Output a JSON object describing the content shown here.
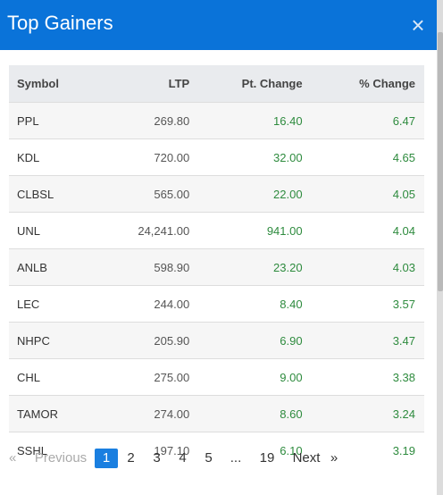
{
  "modal": {
    "title": "Top Gainers",
    "close_glyph": "×"
  },
  "table": {
    "headers": {
      "symbol": "Symbol",
      "ltp": "LTP",
      "pt_change": "Pt. Change",
      "pct_change": "% Change"
    },
    "rows": [
      {
        "symbol": "PPL",
        "ltp": "269.80",
        "pt_change": "16.40",
        "pct_change": "6.47"
      },
      {
        "symbol": "KDL",
        "ltp": "720.00",
        "pt_change": "32.00",
        "pct_change": "4.65"
      },
      {
        "symbol": "CLBSL",
        "ltp": "565.00",
        "pt_change": "22.00",
        "pct_change": "4.05"
      },
      {
        "symbol": "UNL",
        "ltp": "24,241.00",
        "pt_change": "941.00",
        "pct_change": "4.04"
      },
      {
        "symbol": "ANLB",
        "ltp": "598.90",
        "pt_change": "23.20",
        "pct_change": "4.03"
      },
      {
        "symbol": "LEC",
        "ltp": "244.00",
        "pt_change": "8.40",
        "pct_change": "3.57"
      },
      {
        "symbol": "NHPC",
        "ltp": "205.90",
        "pt_change": "6.90",
        "pct_change": "3.47"
      },
      {
        "symbol": "CHL",
        "ltp": "275.00",
        "pt_change": "9.00",
        "pct_change": "3.38"
      },
      {
        "symbol": "TAMOR",
        "ltp": "274.00",
        "pt_change": "8.60",
        "pct_change": "3.24"
      },
      {
        "symbol": "SSHL",
        "ltp": "197.10",
        "pt_change": "6.10",
        "pct_change": "3.19"
      }
    ]
  },
  "pagination": {
    "prev_glyph": "«",
    "previous_label": "Previous",
    "pages": [
      "1",
      "2",
      "3",
      "4",
      "5"
    ],
    "ellipsis": "...",
    "last_page": "19",
    "next_label": "Next",
    "next_glyph": "»",
    "current_page": "1"
  },
  "colors": {
    "header_bg": "#0a73d9",
    "positive": "#2e8b3e",
    "active_page": "#1a7fe0"
  }
}
